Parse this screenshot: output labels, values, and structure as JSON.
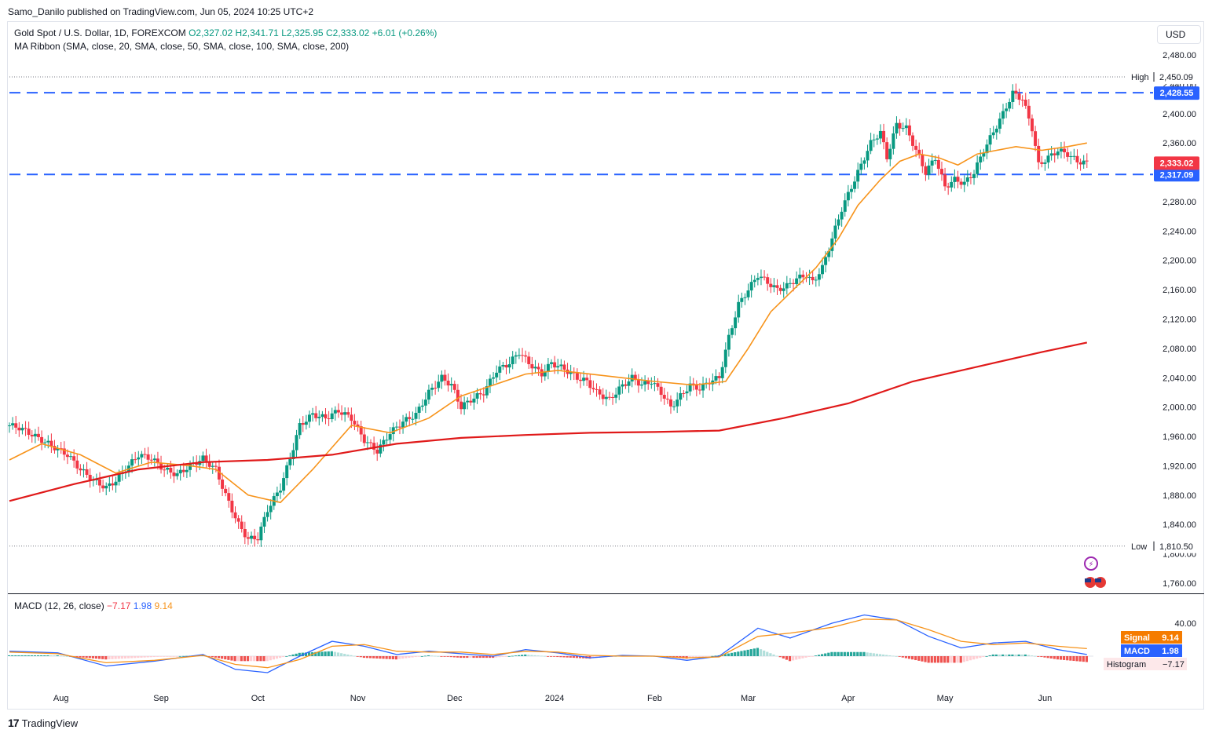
{
  "header": {
    "credit": "Samo_Danilo published on TradingView.com, Jun 05, 2024 10:25 UTC+2",
    "symbol_title": "Gold Spot / U.S. Dollar, 1D, FOREXCOM",
    "ohlc": {
      "open": "O2,327.02",
      "high": "H2,341.71",
      "low": "L2,325.95",
      "close": "C2,333.02",
      "change": "+6.01 (+0.26%)"
    },
    "indicator": "MA Ribbon (SMA, close, 20, SMA, close, 50, SMA, close, 100, SMA, close, 200)",
    "currency_button": "USD"
  },
  "macd_legend": {
    "label": "MACD (12, 26, close)",
    "histogram": "−7.17",
    "macd": "1.98",
    "signal": "9.14"
  },
  "footer": {
    "brand": "TradingView"
  },
  "colors": {
    "up": "#089981",
    "down": "#f23645",
    "sma20": "#f7931a",
    "sma200": "#e01a1a",
    "level": "#2962ff",
    "macd": "#2962ff",
    "signal": "#f7931a",
    "hist_up": "#26a69a",
    "hist_up_light": "#b2dfdb",
    "hist_down": "#ef5350",
    "hist_down_light": "#ffcdd2"
  },
  "chart_data": {
    "type": "candlestick",
    "price_axis": {
      "min": 1760,
      "max": 2480,
      "ticks": [
        "2,480.00",
        "2,440.00",
        "2,400.00",
        "2,360.00",
        "2,320.00",
        "2,280.00",
        "2,240.00",
        "2,200.00",
        "2,160.00",
        "2,120.00",
        "2,080.00",
        "2,040.00",
        "2,000.00",
        "1,960.00",
        "1,920.00",
        "1,880.00",
        "1,840.00",
        "1,800.00",
        "1,760.00"
      ]
    },
    "time_axis": {
      "labels": [
        {
          "text": "Aug",
          "day": 16
        },
        {
          "text": "Sep",
          "day": 47
        },
        {
          "text": "Oct",
          "day": 77
        },
        {
          "text": "Nov",
          "day": 108
        },
        {
          "text": "Dec",
          "day": 138
        },
        {
          "text": "2024",
          "day": 169
        },
        {
          "text": "Feb",
          "day": 200
        },
        {
          "text": "Mar",
          "day": 229
        },
        {
          "text": "Apr",
          "day": 260
        },
        {
          "text": "May",
          "day": 290
        },
        {
          "text": "Jun",
          "day": 321
        }
      ],
      "total_days": 341
    },
    "high_label": {
      "text": "High",
      "value": "2,450.09",
      "price": 2450.09
    },
    "low_label": {
      "text": "Low",
      "value": "1,810.50",
      "price": 1810.5
    },
    "levels": [
      {
        "price": 2428.55,
        "label": "2,428.55"
      },
      {
        "price": 2317.09,
        "label": "2,317.09"
      }
    ],
    "last_price": {
      "price": 2333.02,
      "label": "2,333.02"
    },
    "closes": [
      [
        0,
        1975
      ],
      [
        3,
        1972
      ],
      [
        6,
        1965
      ],
      [
        10,
        1955
      ],
      [
        14,
        1945
      ],
      [
        18,
        1935
      ],
      [
        22,
        1915
      ],
      [
        26,
        1900
      ],
      [
        30,
        1890
      ],
      [
        33,
        1900
      ],
      [
        36,
        1915
      ],
      [
        40,
        1935
      ],
      [
        44,
        1930
      ],
      [
        48,
        1915
      ],
      [
        52,
        1908
      ],
      [
        56,
        1920
      ],
      [
        60,
        1930
      ],
      [
        64,
        1915
      ],
      [
        67,
        1880
      ],
      [
        71,
        1840
      ],
      [
        74,
        1820
      ],
      [
        77,
        1822
      ],
      [
        80,
        1860
      ],
      [
        84,
        1890
      ],
      [
        87,
        1930
      ],
      [
        90,
        1975
      ],
      [
        94,
        1990
      ],
      [
        98,
        1985
      ],
      [
        102,
        1995
      ],
      [
        106,
        1985
      ],
      [
        110,
        1955
      ],
      [
        114,
        1940
      ],
      [
        118,
        1965
      ],
      [
        122,
        1980
      ],
      [
        126,
        1990
      ],
      [
        130,
        2020
      ],
      [
        134,
        2040
      ],
      [
        137,
        2030
      ],
      [
        140,
        2000
      ],
      [
        143,
        2010
      ],
      [
        147,
        2020
      ],
      [
        151,
        2050
      ],
      [
        155,
        2060
      ],
      [
        158,
        2075
      ],
      [
        161,
        2060
      ],
      [
        165,
        2045
      ],
      [
        168,
        2060
      ],
      [
        172,
        2052
      ],
      [
        176,
        2040
      ],
      [
        179,
        2035
      ],
      [
        182,
        2020
      ],
      [
        186,
        2010
      ],
      [
        189,
        2025
      ],
      [
        193,
        2040
      ],
      [
        196,
        2030
      ],
      [
        199,
        2035
      ],
      [
        202,
        2020
      ],
      [
        205,
        2000
      ],
      [
        208,
        2015
      ],
      [
        211,
        2030
      ],
      [
        214,
        2025
      ],
      [
        217,
        2035
      ],
      [
        220,
        2040
      ],
      [
        223,
        2095
      ],
      [
        226,
        2140
      ],
      [
        229,
        2160
      ],
      [
        232,
        2180
      ],
      [
        235,
        2170
      ],
      [
        238,
        2160
      ],
      [
        241,
        2165
      ],
      [
        244,
        2175
      ],
      [
        247,
        2180
      ],
      [
        249,
        2170
      ],
      [
        252,
        2190
      ],
      [
        255,
        2230
      ],
      [
        258,
        2270
      ],
      [
        261,
        2300
      ],
      [
        264,
        2330
      ],
      [
        267,
        2360
      ],
      [
        270,
        2375
      ],
      [
        272,
        2340
      ],
      [
        275,
        2385
      ],
      [
        278,
        2380
      ],
      [
        281,
        2350
      ],
      [
        284,
        2320
      ],
      [
        287,
        2340
      ],
      [
        290,
        2300
      ],
      [
        293,
        2310
      ],
      [
        296,
        2305
      ],
      [
        299,
        2320
      ],
      [
        302,
        2350
      ],
      [
        305,
        2375
      ],
      [
        308,
        2400
      ],
      [
        311,
        2428
      ],
      [
        314,
        2420
      ],
      [
        317,
        2380
      ],
      [
        319,
        2330
      ],
      [
        322,
        2340
      ],
      [
        325,
        2350
      ],
      [
        328,
        2345
      ],
      [
        331,
        2335
      ],
      [
        334,
        2333
      ]
    ],
    "sma20": [
      [
        0,
        1928
      ],
      [
        10,
        1950
      ],
      [
        22,
        1935
      ],
      [
        33,
        1910
      ],
      [
        44,
        1925
      ],
      [
        56,
        1920
      ],
      [
        64,
        1915
      ],
      [
        74,
        1880
      ],
      [
        84,
        1870
      ],
      [
        94,
        1915
      ],
      [
        106,
        1975
      ],
      [
        118,
        1965
      ],
      [
        130,
        1985
      ],
      [
        140,
        2015
      ],
      [
        150,
        2030
      ],
      [
        160,
        2045
      ],
      [
        170,
        2050
      ],
      [
        180,
        2045
      ],
      [
        190,
        2040
      ],
      [
        200,
        2035
      ],
      [
        212,
        2030
      ],
      [
        222,
        2035
      ],
      [
        229,
        2080
      ],
      [
        236,
        2130
      ],
      [
        243,
        2160
      ],
      [
        250,
        2190
      ],
      [
        257,
        2230
      ],
      [
        263,
        2275
      ],
      [
        270,
        2310
      ],
      [
        276,
        2335
      ],
      [
        282,
        2345
      ],
      [
        288,
        2340
      ],
      [
        294,
        2330
      ],
      [
        300,
        2345
      ],
      [
        306,
        2350
      ],
      [
        312,
        2355
      ],
      [
        320,
        2350
      ],
      [
        328,
        2355
      ],
      [
        334,
        2360
      ]
    ],
    "sma200": [
      [
        0,
        1872
      ],
      [
        20,
        1895
      ],
      [
        40,
        1915
      ],
      [
        60,
        1925
      ],
      [
        80,
        1928
      ],
      [
        100,
        1935
      ],
      [
        120,
        1950
      ],
      [
        140,
        1958
      ],
      [
        160,
        1962
      ],
      [
        180,
        1965
      ],
      [
        200,
        1966
      ],
      [
        220,
        1968
      ],
      [
        240,
        1985
      ],
      [
        260,
        2005
      ],
      [
        280,
        2035
      ],
      [
        300,
        2055
      ],
      [
        320,
        2075
      ],
      [
        334,
        2088
      ]
    ],
    "macd_axis": {
      "min": -40,
      "max": 60,
      "ticks": [
        "40.00"
      ]
    },
    "macd": [
      [
        0,
        6
      ],
      [
        15,
        4
      ],
      [
        30,
        -12
      ],
      [
        45,
        -6
      ],
      [
        60,
        2
      ],
      [
        70,
        -16
      ],
      [
        80,
        -20
      ],
      [
        90,
        0
      ],
      [
        100,
        18
      ],
      [
        110,
        12
      ],
      [
        120,
        2
      ],
      [
        130,
        6
      ],
      [
        140,
        3
      ],
      [
        150,
        0
      ],
      [
        160,
        8
      ],
      [
        170,
        4
      ],
      [
        180,
        -2
      ],
      [
        190,
        1
      ],
      [
        200,
        0
      ],
      [
        210,
        -5
      ],
      [
        220,
        0
      ],
      [
        232,
        34
      ],
      [
        242,
        22
      ],
      [
        255,
        40
      ],
      [
        265,
        50
      ],
      [
        275,
        44
      ],
      [
        285,
        24
      ],
      [
        295,
        10
      ],
      [
        305,
        16
      ],
      [
        315,
        18
      ],
      [
        325,
        8
      ],
      [
        334,
        2
      ]
    ],
    "signal": [
      [
        0,
        5
      ],
      [
        15,
        3
      ],
      [
        30,
        -8
      ],
      [
        45,
        -5
      ],
      [
        60,
        1
      ],
      [
        70,
        -10
      ],
      [
        80,
        -14
      ],
      [
        90,
        -4
      ],
      [
        100,
        12
      ],
      [
        110,
        14
      ],
      [
        120,
        6
      ],
      [
        130,
        5
      ],
      [
        140,
        5
      ],
      [
        150,
        2
      ],
      [
        160,
        6
      ],
      [
        170,
        5
      ],
      [
        180,
        1
      ],
      [
        190,
        0
      ],
      [
        200,
        0
      ],
      [
        210,
        -2
      ],
      [
        220,
        -1
      ],
      [
        232,
        24
      ],
      [
        242,
        28
      ],
      [
        255,
        35
      ],
      [
        265,
        45
      ],
      [
        275,
        44
      ],
      [
        285,
        32
      ],
      [
        295,
        18
      ],
      [
        305,
        14
      ],
      [
        315,
        16
      ],
      [
        325,
        12
      ],
      [
        334,
        9.14
      ]
    ],
    "macd_values": {
      "macd": "1.98",
      "signal": "9.14",
      "histogram": "−7.17"
    }
  }
}
